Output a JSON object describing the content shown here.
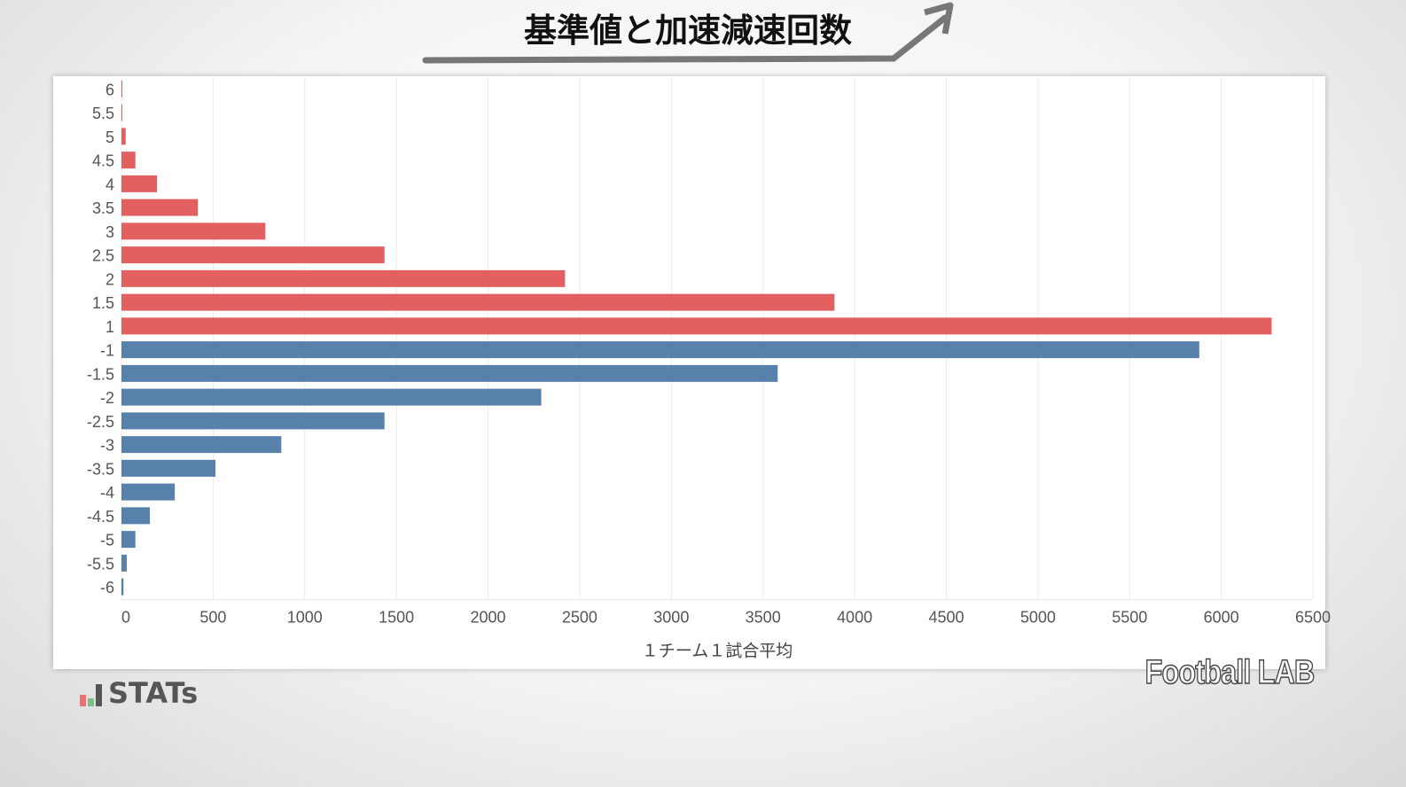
{
  "title": "基準値と加速減速回数",
  "brand": "Football LAB",
  "logo_text": "STATs",
  "chart_data": {
    "type": "bar",
    "orientation": "horizontal",
    "categories": [
      "6",
      "5.5",
      "5",
      "4.5",
      "4",
      "3.5",
      "3",
      "2.5",
      "2",
      "1.5",
      "1",
      "-1",
      "-1.5",
      "-2",
      "-2.5",
      "-3",
      "-3.5",
      "-4",
      "-4.5",
      "-5",
      "-5.5",
      "-6"
    ],
    "values": [
      4,
      3,
      23,
      76,
      194,
      417,
      785,
      1435,
      2420,
      3890,
      6275,
      5880,
      3580,
      2290,
      1435,
      872,
      513,
      291,
      155,
      76,
      29,
      11
    ],
    "colors": {
      "positive": "#e15759",
      "negative": "#4e79a7"
    },
    "xlabel": "１チーム１試合平均",
    "ylabel": "",
    "xlim": [
      0,
      6500
    ],
    "xticks": [
      0,
      500,
      1000,
      1500,
      2000,
      2500,
      3000,
      3500,
      4000,
      4500,
      5000,
      5500,
      6000,
      6500
    ],
    "grid": true,
    "legend": "none"
  }
}
